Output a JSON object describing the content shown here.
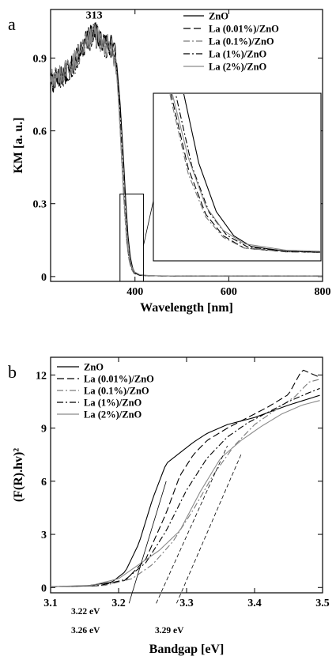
{
  "chart_data": [
    {
      "type": "line",
      "panel_label": "a",
      "xlabel": "Wavelength [nm]",
      "ylabel": "KM [a. u.]",
      "xlim": [
        220,
        800
      ],
      "ylim": [
        -0.02,
        1.1
      ],
      "x_ticks": [
        400,
        600,
        800
      ],
      "y_ticks": [
        0,
        0.3,
        0.6,
        0.9
      ],
      "x_tick_labels": [
        "400",
        "600",
        "800"
      ],
      "y_tick_labels": [
        "0",
        "0.3",
        "0.6",
        "0.9"
      ],
      "peak_annotation": {
        "label": "313",
        "x": 313,
        "y": 1.05
      },
      "legend_position": "top-right",
      "inset": "zoom of 370–420 nm absorption edge",
      "series": [
        {
          "name": "ZnO",
          "dash": "solid",
          "color": "#000000",
          "x": [
            220,
            260,
            300,
            313,
            330,
            350,
            360,
            368,
            375,
            380,
            385,
            390,
            395,
            400,
            410,
            430,
            500,
            800
          ],
          "y": [
            0.79,
            0.85,
            0.98,
            1.01,
            0.97,
            0.96,
            0.9,
            0.72,
            0.5,
            0.32,
            0.17,
            0.08,
            0.035,
            0.015,
            0.006,
            0.003,
            0.002,
            0.002
          ]
        },
        {
          "name": "La (0.01%)/ZnO",
          "dash": "dashed",
          "color": "#000000",
          "x": [
            220,
            260,
            300,
            313,
            330,
            350,
            360,
            366,
            372,
            377,
            382,
            387,
            392,
            398,
            410,
            430,
            500,
            800
          ],
          "y": [
            0.8,
            0.86,
            0.99,
            1.02,
            0.98,
            0.95,
            0.88,
            0.7,
            0.47,
            0.3,
            0.16,
            0.075,
            0.035,
            0.012,
            0.005,
            0.003,
            0.002,
            0.002
          ]
        },
        {
          "name": "La (0.1%)/ZnO",
          "dash": "dash-dot",
          "color": "#7a7a7a",
          "x": [
            220,
            260,
            300,
            313,
            330,
            350,
            360,
            366,
            372,
            377,
            382,
            387,
            392,
            398,
            410,
            430,
            500,
            800
          ],
          "y": [
            0.81,
            0.85,
            0.97,
            1.0,
            0.96,
            0.95,
            0.87,
            0.69,
            0.46,
            0.29,
            0.15,
            0.07,
            0.032,
            0.012,
            0.005,
            0.003,
            0.002,
            0.002
          ]
        },
        {
          "name": "La (1%)/ZnO",
          "dash": "dash-dot",
          "color": "#000000",
          "x": [
            220,
            260,
            300,
            313,
            330,
            350,
            360,
            367,
            373,
            378,
            383,
            388,
            393,
            399,
            410,
            430,
            500,
            800
          ],
          "y": [
            0.8,
            0.84,
            0.96,
            0.99,
            0.95,
            0.94,
            0.88,
            0.71,
            0.48,
            0.31,
            0.165,
            0.078,
            0.036,
            0.014,
            0.006,
            0.003,
            0.002,
            0.002
          ]
        },
        {
          "name": "La (2%)/ZnO",
          "dash": "solid",
          "color": "#8a8a8a",
          "x": [
            220,
            260,
            300,
            313,
            330,
            350,
            360,
            366,
            372,
            377,
            382,
            387,
            392,
            398,
            410,
            430,
            500,
            800
          ],
          "y": [
            0.8,
            0.86,
            0.97,
            1.0,
            0.96,
            0.95,
            0.86,
            0.69,
            0.48,
            0.31,
            0.18,
            0.09,
            0.045,
            0.02,
            0.008,
            0.004,
            0.002,
            0.002
          ]
        }
      ]
    },
    {
      "type": "line",
      "panel_label": "b",
      "xlabel": "Bandgap [eV]",
      "ylabel": "(F(R).hv)²",
      "xlim": [
        3.1,
        3.5
      ],
      "ylim": [
        -0.3,
        13
      ],
      "x_ticks": [
        3.1,
        3.2,
        3.3,
        3.4,
        3.5
      ],
      "y_ticks": [
        0,
        3,
        6,
        9,
        12
      ],
      "x_tick_labels": [
        "3.1",
        "3.2",
        "3.3",
        "3.4",
        "3.5"
      ],
      "y_tick_labels": [
        "0",
        "3",
        "6",
        "9",
        "12"
      ],
      "legend_position": "top-left",
      "annotations": [
        {
          "label": "3.22 eV",
          "x": 3.22
        },
        {
          "label": "3.26 eV",
          "x": 3.26
        },
        {
          "label": "3.29 eV",
          "x": 3.29
        }
      ],
      "series": [
        {
          "name": "ZnO",
          "dash": "solid",
          "color": "#000000",
          "x": [
            3.1,
            3.15,
            3.19,
            3.21,
            3.23,
            3.25,
            3.27,
            3.29,
            3.31,
            3.33,
            3.36,
            3.4,
            3.45,
            3.5
          ],
          "y": [
            0.05,
            0.08,
            0.3,
            0.9,
            2.5,
            5.0,
            7.0,
            7.6,
            8.2,
            8.7,
            9.2,
            9.6,
            10.3,
            10.9
          ]
        },
        {
          "name": "La (0.01%)/ZnO",
          "dash": "dashed",
          "color": "#000000",
          "x": [
            3.1,
            3.17,
            3.21,
            3.24,
            3.27,
            3.29,
            3.31,
            3.33,
            3.36,
            3.39,
            3.42,
            3.45,
            3.47,
            3.5
          ],
          "y": [
            0.05,
            0.1,
            0.4,
            1.6,
            4.2,
            6.3,
            7.5,
            8.3,
            9.0,
            9.6,
            10.2,
            10.9,
            12.3,
            11.8
          ]
        },
        {
          "name": "La (0.1%)/ZnO",
          "dash": "dash-dot",
          "color": "#7a7a7a",
          "x": [
            3.1,
            3.18,
            3.22,
            3.25,
            3.28,
            3.31,
            3.34,
            3.37,
            3.4,
            3.43,
            3.46,
            3.48,
            3.5
          ],
          "y": [
            0.05,
            0.12,
            0.5,
            1.3,
            2.6,
            4.4,
            6.4,
            8.0,
            9.2,
            10.0,
            10.8,
            11.6,
            11.8
          ]
        },
        {
          "name": "La (1%)/ZnO",
          "dash": "dash-dot",
          "color": "#000000",
          "x": [
            3.1,
            3.17,
            3.21,
            3.24,
            3.27,
            3.3,
            3.33,
            3.36,
            3.39,
            3.42,
            3.45,
            3.48,
            3.5
          ],
          "y": [
            0.05,
            0.1,
            0.45,
            1.4,
            3.2,
            5.5,
            7.3,
            8.5,
            9.3,
            9.9,
            10.5,
            11.0,
            11.3
          ]
        },
        {
          "name": "La (2%)/ZnO",
          "dash": "solid",
          "color": "#8a8a8a",
          "x": [
            3.1,
            3.16,
            3.2,
            3.23,
            3.26,
            3.29,
            3.32,
            3.35,
            3.38,
            3.41,
            3.44,
            3.47,
            3.5
          ],
          "y": [
            0.05,
            0.12,
            0.5,
            1.3,
            2.1,
            3.2,
            5.4,
            7.3,
            8.3,
            9.1,
            9.8,
            10.3,
            10.6
          ]
        }
      ]
    }
  ]
}
